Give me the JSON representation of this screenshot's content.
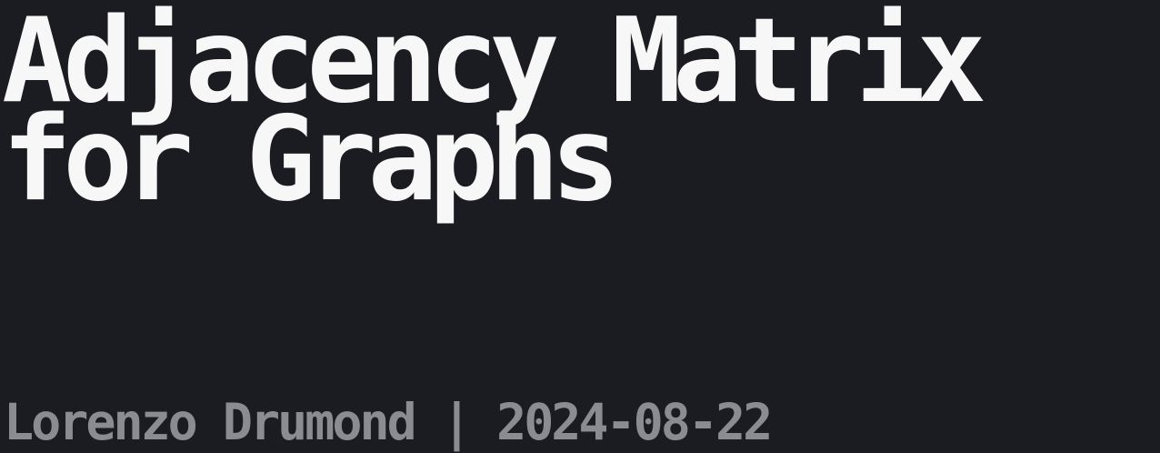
{
  "title": {
    "line1": "Adjacency Matrix",
    "line2": "for Graphs"
  },
  "byline": {
    "author": "Lorenzo Drumond",
    "separator": "|",
    "date": "2024-08-22"
  }
}
